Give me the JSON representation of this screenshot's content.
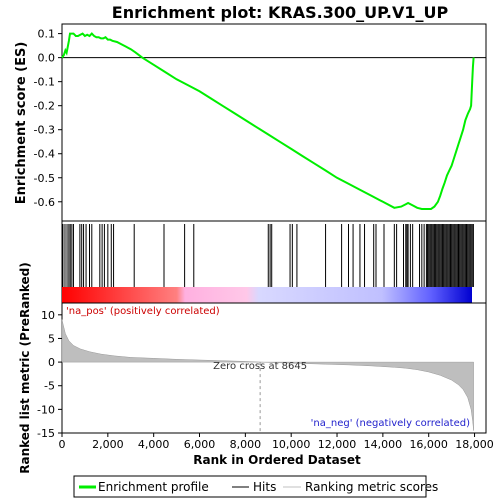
{
  "chart_data": [
    {
      "type": "line",
      "title": "Enrichment plot: KRAS.300_UP.V1_UP",
      "ylabel": "Enrichment score (ES)",
      "xlim": [
        0,
        18500
      ],
      "ylim": [
        -0.68,
        0.14
      ],
      "yticks": [
        0.1,
        0.0,
        -0.1,
        -0.2,
        -0.3,
        -0.4,
        -0.5,
        -0.6
      ],
      "ytick_labels": [
        "0.1",
        "0.0",
        "-0.1",
        "-0.2",
        "-0.3",
        "-0.4",
        "-0.5",
        "-0.6"
      ],
      "color": "#00ee00",
      "series": [
        {
          "name": "Enrichment profile",
          "x": [
            0,
            80,
            150,
            200,
            260,
            300,
            350,
            420,
            500,
            600,
            700,
            800,
            900,
            1000,
            1100,
            1200,
            1300,
            1400,
            1500,
            1600,
            1700,
            1800,
            1900,
            2000,
            2100,
            2200,
            2400,
            2600,
            2800,
            3000,
            3200,
            3500,
            4000,
            4500,
            5000,
            5500,
            6000,
            6500,
            7000,
            7500,
            8000,
            8500,
            9000,
            9500,
            10000,
            10500,
            11000,
            11500,
            12000,
            12500,
            13000,
            13500,
            14000,
            14500,
            14800,
            15000,
            15100,
            15300,
            15500,
            15700,
            15900,
            16100,
            16250,
            16400,
            16500,
            16600,
            16700,
            16800,
            16900,
            17000,
            17100,
            17200,
            17300,
            17400,
            17500,
            17600,
            17700,
            17750,
            17800,
            17850,
            17900,
            17930,
            17960
          ],
          "y": [
            0.0,
            0.01,
            0.03,
            0.02,
            0.05,
            0.07,
            0.1,
            0.1,
            0.1,
            0.09,
            0.09,
            0.095,
            0.1,
            0.09,
            0.095,
            0.09,
            0.1,
            0.09,
            0.085,
            0.085,
            0.08,
            0.08,
            0.085,
            0.075,
            0.075,
            0.07,
            0.065,
            0.055,
            0.045,
            0.035,
            0.022,
            0.0,
            -0.03,
            -0.06,
            -0.09,
            -0.115,
            -0.14,
            -0.17,
            -0.2,
            -0.23,
            -0.26,
            -0.29,
            -0.32,
            -0.35,
            -0.38,
            -0.41,
            -0.44,
            -0.47,
            -0.5,
            -0.525,
            -0.55,
            -0.575,
            -0.6,
            -0.625,
            -0.62,
            -0.61,
            -0.605,
            -0.615,
            -0.625,
            -0.63,
            -0.63,
            -0.63,
            -0.62,
            -0.6,
            -0.575,
            -0.545,
            -0.52,
            -0.49,
            -0.47,
            -0.45,
            -0.42,
            -0.39,
            -0.36,
            -0.33,
            -0.3,
            -0.26,
            -0.235,
            -0.225,
            -0.215,
            -0.2,
            -0.1,
            -0.04,
            0.0
          ]
        }
      ]
    },
    {
      "type": "hits",
      "hit_positions": [
        40,
        130,
        220,
        300,
        360,
        430,
        500,
        780,
        860,
        940,
        1050,
        1200,
        1300,
        1650,
        1750,
        1850,
        2000,
        2150,
        2250,
        3150,
        4450,
        5350,
        5750,
        9000,
        9080,
        9150,
        9950,
        10050,
        10250,
        11500,
        12200,
        12500,
        12700,
        13000,
        13200,
        13600,
        13700,
        14050,
        14500,
        14600,
        14900,
        15000,
        15050,
        15100,
        15200,
        15300,
        15600,
        15700,
        15800,
        15900,
        15950,
        16000,
        16050,
        16100,
        16150,
        16200,
        16250,
        16300,
        16350,
        16400,
        16450,
        16500,
        16550,
        16600,
        16650,
        16700,
        16750,
        16800,
        16850,
        16900,
        16950,
        17000,
        17050,
        17100,
        17150,
        17200,
        17250,
        17300,
        17350,
        17400,
        17450,
        17500,
        17550,
        17600,
        17650,
        17700,
        17750,
        17800,
        17850,
        17900,
        17950
      ],
      "gradient_colors": [
        "#ff0000",
        "#ff8080",
        "#ff9ad0",
        "#d0d0ff",
        "#7070ff",
        "#0000e0"
      ]
    },
    {
      "type": "area",
      "ylabel": "Ranked list metric (PreRanked)",
      "xlabel": "Rank in Ordered Dataset",
      "xlim": [
        0,
        18500
      ],
      "ylim": [
        -15,
        12.5
      ],
      "yticks": [
        10,
        5,
        0,
        -5,
        -10,
        -15
      ],
      "ytick_labels": [
        "10",
        "5",
        "0",
        "-5",
        "-10",
        "-15"
      ],
      "xticks": [
        0,
        2000,
        4000,
        6000,
        8000,
        10000,
        12000,
        14000,
        16000,
        18000
      ],
      "xtick_labels": [
        "0",
        "2,000",
        "4,000",
        "6,000",
        "8,000",
        "10,000",
        "12,000",
        "14,000",
        "16,000",
        "18,000"
      ],
      "x": [
        0,
        50,
        150,
        300,
        500,
        800,
        1200,
        1700,
        2300,
        3000,
        4000,
        5000,
        6000,
        7000,
        8000,
        8645,
        9500,
        10500,
        11500,
        12500,
        13500,
        14500,
        15000,
        15500,
        16000,
        16500,
        17000,
        17300,
        17500,
        17700,
        17850,
        17920,
        17960
      ],
      "values": [
        9.0,
        8.0,
        6.0,
        4.5,
        3.5,
        2.8,
        2.2,
        1.7,
        1.3,
        1.0,
        0.8,
        0.6,
        0.45,
        0.3,
        0.15,
        0.0,
        -0.15,
        -0.3,
        -0.45,
        -0.6,
        -0.8,
        -1.1,
        -1.3,
        -1.6,
        -2.1,
        -2.8,
        -3.8,
        -4.8,
        -5.8,
        -7.5,
        -10.0,
        -12.5,
        -14.5
      ],
      "zero_cross_label": "Zero cross at 8645",
      "zero_cross_x": 8645,
      "pos_label": "'na_pos' (positively correlated)",
      "neg_label": "'na_neg' (negatively correlated)"
    }
  ],
  "legend": {
    "items": [
      {
        "label": "Enrichment profile",
        "color": "#00ee00"
      },
      {
        "label": "Hits",
        "color": "#000000"
      },
      {
        "label": "Ranking metric scores",
        "color": "#c0c0c0"
      }
    ]
  },
  "colors": {
    "profile": "#00ee00",
    "metric_fill": "#bebebe",
    "pos_label": "#cc0000",
    "neg_label": "#2222cc"
  }
}
